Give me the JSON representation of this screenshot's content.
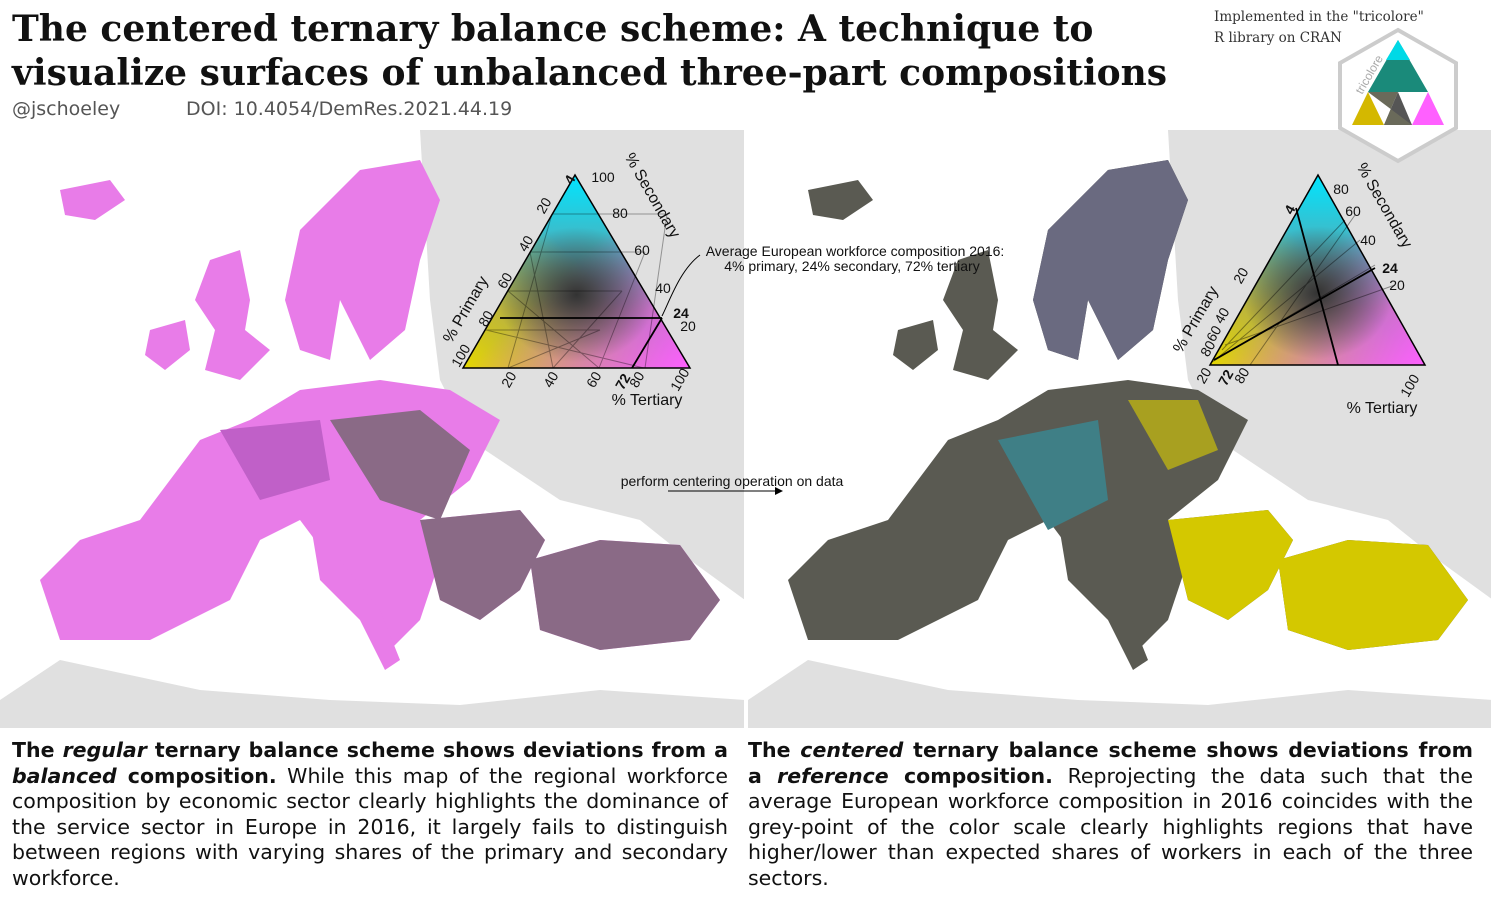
{
  "header": {
    "title_line1": "The centered ternary balance scheme: A technique to",
    "title_line2": "visualize surfaces of unbalanced three-part compositions",
    "handle": "@jschoeley",
    "doi": "DOI: 10.4054/DemRes.2021.44.19",
    "note_line1": "Implemented in the \"tricolore\"",
    "note_line2": "R library on CRAN",
    "logo_text": "tricolore"
  },
  "left_legend": {
    "secondary_title": "% Secondary",
    "primary_title": "% Primary",
    "tertiary_title": "% Tertiary",
    "secondary_ticks": [
      "100",
      "80",
      "60",
      "40",
      "20"
    ],
    "primary_ticks": [
      "20",
      "40",
      "60",
      "80",
      "100"
    ],
    "tertiary_ticks": [
      "20",
      "40",
      "60",
      "80",
      "100"
    ],
    "ref_primary": "4",
    "ref_secondary": "24",
    "ref_tertiary": "72"
  },
  "right_legend": {
    "secondary_title": "% Secondary",
    "primary_title": "% Primary",
    "tertiary_title": "% Tertiary",
    "secondary_ticks": [
      "80",
      "60",
      "40",
      "20"
    ],
    "primary_ticks": [
      "20",
      "40",
      "60",
      "80"
    ],
    "tertiary_ticks": [
      "20",
      "80",
      "100"
    ],
    "ref_primary": "4",
    "ref_secondary": "24",
    "ref_tertiary": "72"
  },
  "annotations": {
    "average_line1": "Average European workforce composition 2016:",
    "average_line2": "4% primary, 24% secondary, 72% tertiary",
    "centering": "perform centering operation on data"
  },
  "left_text": {
    "p1": "The ",
    "em1": "regular",
    "p2": " ternary balance scheme shows deviations from a ",
    "em2": "balanced",
    "p3": " composition.",
    "body": " While this map of the regional workforce composition by economic sector clearly highlights the dominance of the service sector in Europe in 2016, it largely fails to distinguish between regions with varying shares of the primary and secondary workforce."
  },
  "right_text": {
    "p1": "The ",
    "em1": "centered",
    "p2": " ternary balance scheme shows deviations from a ",
    "em2": "reference",
    "p3": " composition.",
    "body": " Reprojecting the data such that the average European workforce composition in 2016 coincides with the grey-point of the color scale clearly  highlights regions that have higher/lower than expected shares of workers in each of the three sectors."
  }
}
